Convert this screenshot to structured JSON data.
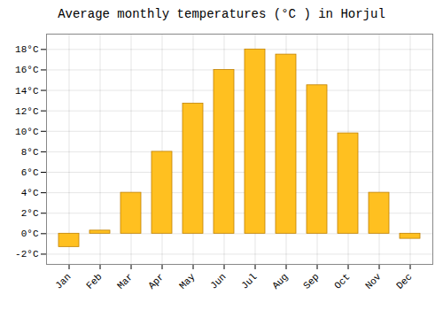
{
  "chart_data": {
    "type": "bar",
    "title": "Average monthly temperatures (°C ) in Horjul",
    "categories": [
      "Jan",
      "Feb",
      "Mar",
      "Apr",
      "May",
      "Jun",
      "Jul",
      "Aug",
      "Sep",
      "Oct",
      "Nov",
      "Dec"
    ],
    "values": [
      -1.3,
      0.3,
      4.0,
      8.0,
      12.7,
      16.0,
      18.0,
      17.5,
      14.5,
      9.8,
      4.0,
      -0.5
    ],
    "color": "#FFC020",
    "ylim": [
      -3,
      19.5
    ],
    "yticks": [
      {
        "value": -2,
        "label": "-2°C"
      },
      {
        "value": 0,
        "label": "0°C"
      },
      {
        "value": 2,
        "label": "2°C"
      },
      {
        "value": 4,
        "label": "4°C"
      },
      {
        "value": 6,
        "label": "6°C"
      },
      {
        "value": 8,
        "label": "8°C"
      },
      {
        "value": 10,
        "label": "10°C"
      },
      {
        "value": 12,
        "label": "12°C"
      },
      {
        "value": 14,
        "label": "14°C"
      },
      {
        "value": 16,
        "label": "16°C"
      },
      {
        "value": 18,
        "label": "18°C"
      }
    ],
    "grid": true
  }
}
